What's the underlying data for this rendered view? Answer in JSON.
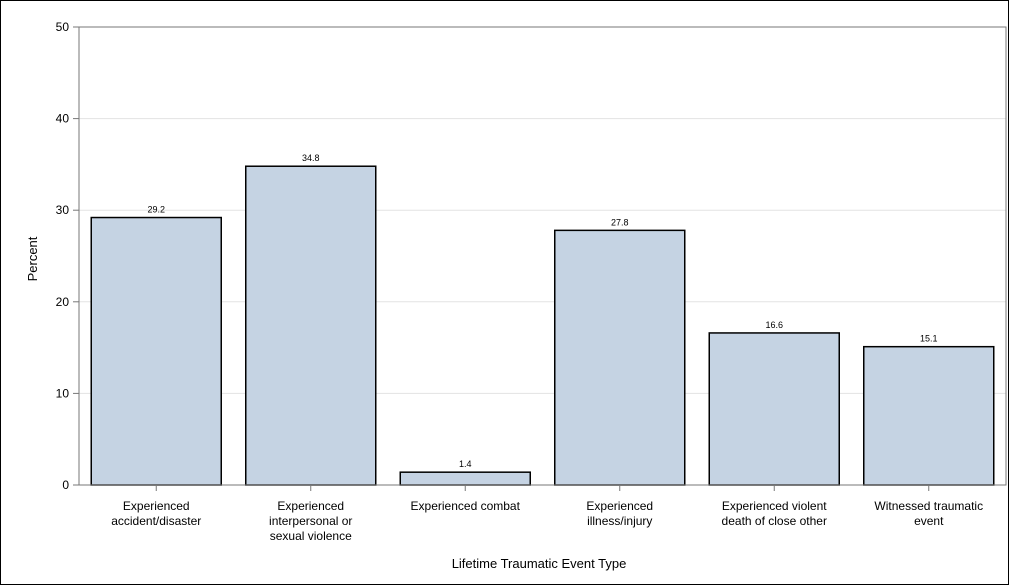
{
  "chart_data": {
    "type": "bar",
    "categories": [
      [
        "Experienced",
        "accident/disaster"
      ],
      [
        "Experienced",
        "interpersonal or",
        "sexual violence"
      ],
      [
        "Experienced combat"
      ],
      [
        "Experienced",
        "illness/injury"
      ],
      [
        "Experienced violent",
        "death of close other"
      ],
      [
        "Witnessed traumatic",
        "event"
      ]
    ],
    "values": [
      29.2,
      34.8,
      1.4,
      27.8,
      16.6,
      15.1
    ],
    "data_labels": [
      "29.2",
      "34.8",
      "1.4",
      "27.8",
      "16.6",
      "15.1"
    ],
    "xlabel": "Lifetime Traumatic Event Type",
    "ylabel": "Percent",
    "ylim": [
      0,
      50
    ],
    "yticks": [
      0,
      10,
      20,
      30,
      40,
      50
    ],
    "grid": true,
    "colors": {
      "bar_fill": "#c5d3e3",
      "bar_stroke": "#000000",
      "grid": "#e3e3e3",
      "axis": "#777777"
    }
  }
}
